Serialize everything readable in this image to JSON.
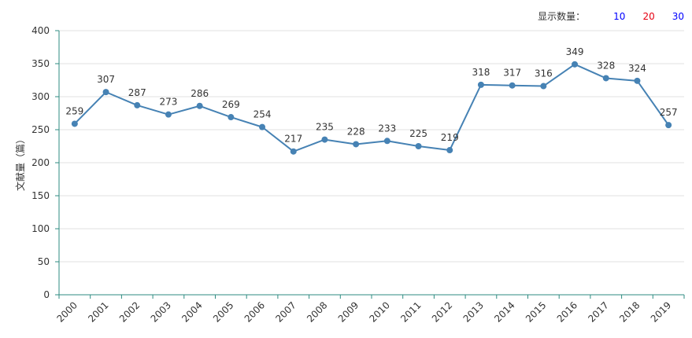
{
  "controls": {
    "count_label": "显示数量：",
    "count_options": [
      {
        "label": "10",
        "color": "#0000ff"
      },
      {
        "label": "20",
        "color": "#e60012"
      },
      {
        "label": "30",
        "color": "#0000ff"
      }
    ]
  },
  "colors": {
    "line": "#4682b4",
    "axis": "#2e8b80",
    "grid": "#e0e0e0",
    "text": "#333333"
  },
  "chart_data": {
    "type": "line",
    "title": "",
    "xlabel": "",
    "ylabel": "文献量（篇）",
    "categories": [
      "2000",
      "2001",
      "2002",
      "2003",
      "2004",
      "2005",
      "2006",
      "2007",
      "2008",
      "2009",
      "2010",
      "2011",
      "2012",
      "2013",
      "2014",
      "2015",
      "2016",
      "2017",
      "2018",
      "2019"
    ],
    "series": [
      {
        "values": [
          259,
          307,
          287,
          273,
          286,
          269,
          254,
          217,
          235,
          228,
          233,
          225,
          219,
          318,
          317,
          316,
          349,
          328,
          324,
          257
        ]
      }
    ],
    "ylim": [
      0,
      400
    ],
    "yticks": [
      0,
      50,
      100,
      150,
      200,
      250,
      300,
      350,
      400
    ],
    "grid": true,
    "data_labels": true
  }
}
